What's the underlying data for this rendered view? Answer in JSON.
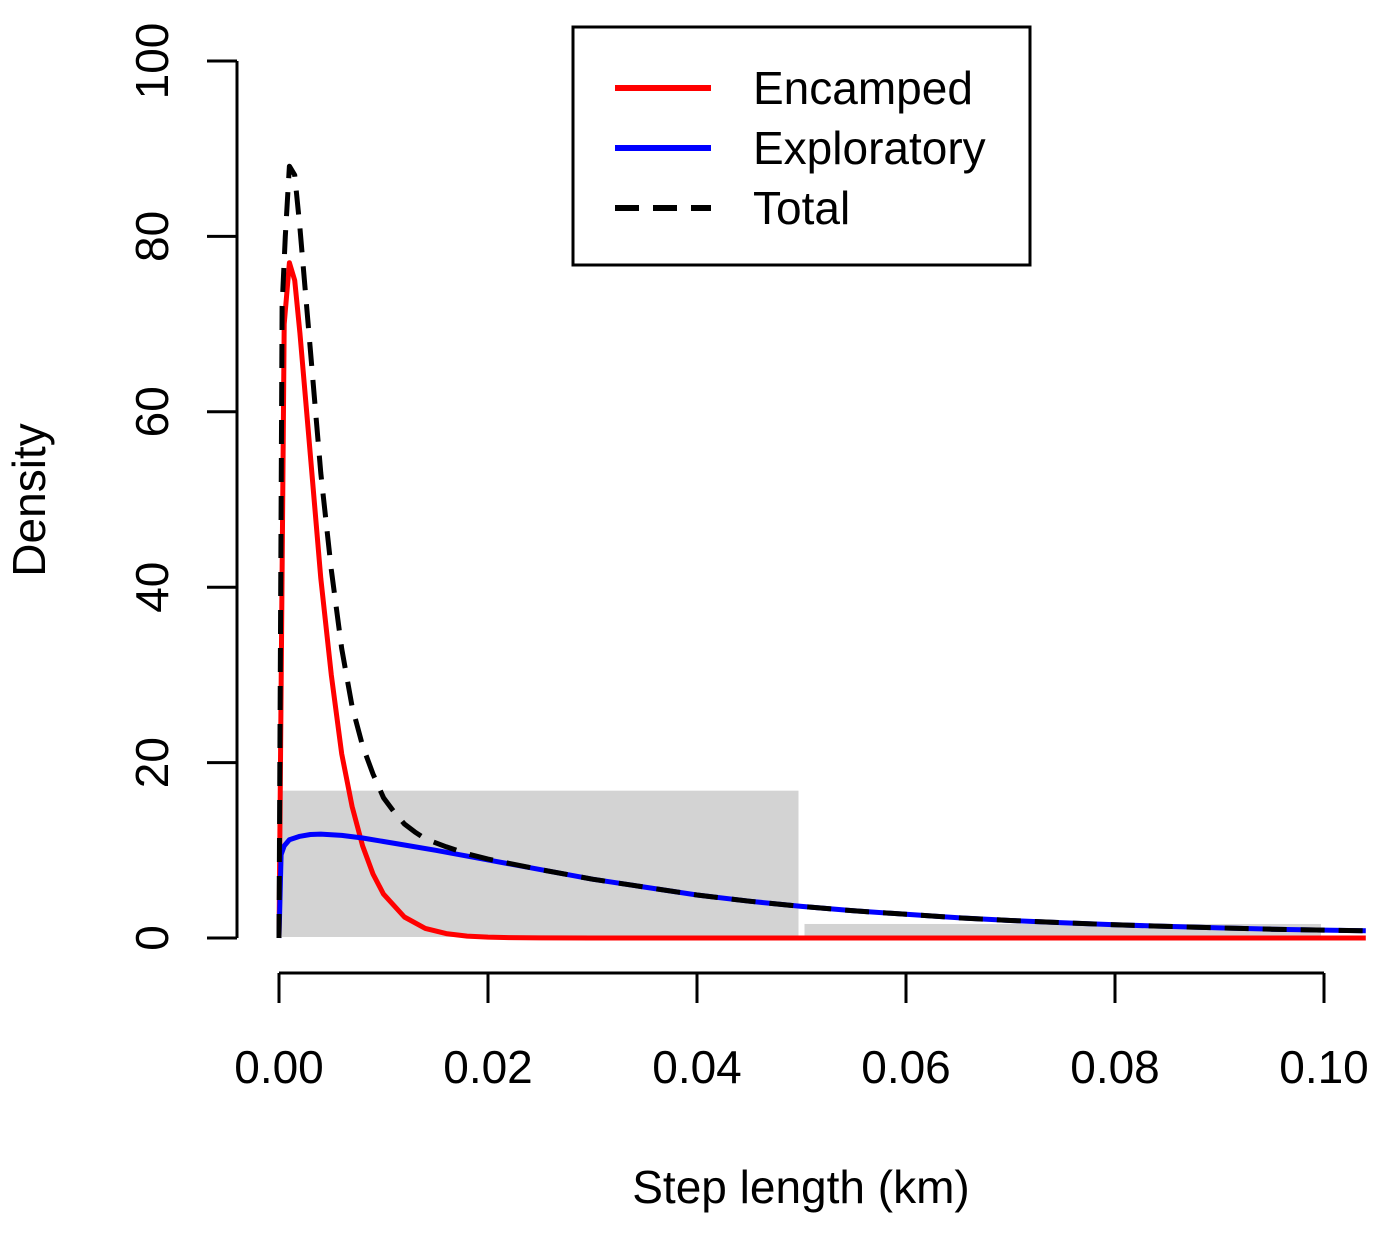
{
  "chart_data": {
    "type": "line",
    "title": "",
    "xlabel": "Step length (km)",
    "ylabel": "Density",
    "xlim": [
      0,
      0.104
    ],
    "ylim": [
      0,
      100
    ],
    "x_ticks": [
      0.0,
      0.02,
      0.04,
      0.06,
      0.08,
      0.1
    ],
    "x_tick_labels": [
      "0.00",
      "0.02",
      "0.04",
      "0.06",
      "0.08",
      "0.10"
    ],
    "y_ticks": [
      0,
      20,
      40,
      60,
      80,
      100
    ],
    "y_tick_labels": [
      "0",
      "20",
      "40",
      "60",
      "80",
      "100"
    ],
    "grid": false,
    "legend_position": "top-right",
    "histogram": {
      "color": "#d3d3d3",
      "bins": [
        {
          "x0": 0.0,
          "x1": 0.05,
          "density": 16.8
        },
        {
          "x0": 0.05,
          "x1": 0.1,
          "density": 1.6
        }
      ]
    },
    "series": [
      {
        "name": "Encamped",
        "color": "#ff0000",
        "dash": "solid",
        "x": [
          0,
          0.0005,
          0.001,
          0.0015,
          0.002,
          0.003,
          0.004,
          0.005,
          0.006,
          0.007,
          0.008,
          0.009,
          0.01,
          0.012,
          0.014,
          0.016,
          0.018,
          0.02,
          0.022,
          0.025,
          0.03,
          0.04,
          0.05,
          0.06,
          0.07,
          0.08,
          0.09,
          0.1,
          0.104
        ],
        "values": [
          0,
          70,
          77,
          75,
          69,
          55,
          41,
          30,
          21,
          15,
          10.5,
          7.3,
          5.0,
          2.4,
          1.1,
          0.5,
          0.22,
          0.1,
          0.04,
          0.01,
          0,
          0,
          0,
          0,
          0,
          0,
          0,
          0,
          0
        ]
      },
      {
        "name": "Exploratory",
        "color": "#0000ff",
        "dash": "solid",
        "x": [
          0,
          0.0002,
          0.0005,
          0.001,
          0.002,
          0.003,
          0.004,
          0.006,
          0.008,
          0.01,
          0.012,
          0.015,
          0.02,
          0.025,
          0.03,
          0.035,
          0.04,
          0.045,
          0.05,
          0.055,
          0.06,
          0.065,
          0.07,
          0.075,
          0.08,
          0.085,
          0.09,
          0.095,
          0.1,
          0.104
        ],
        "values": [
          0,
          9.5,
          10.5,
          11.2,
          11.6,
          11.8,
          11.85,
          11.7,
          11.4,
          11.0,
          10.6,
          10.0,
          8.9,
          7.8,
          6.7,
          5.8,
          4.9,
          4.2,
          3.6,
          3.1,
          2.7,
          2.3,
          2.0,
          1.75,
          1.5,
          1.32,
          1.15,
          1.0,
          0.9,
          0.82
        ]
      },
      {
        "name": "Total",
        "color": "#000000",
        "dash": "dashed",
        "x": [
          0,
          0.0003,
          0.0006,
          0.001,
          0.0015,
          0.002,
          0.003,
          0.004,
          0.005,
          0.006,
          0.007,
          0.008,
          0.009,
          0.01,
          0.011,
          0.012,
          0.013,
          0.014,
          0.016,
          0.018,
          0.02,
          0.025,
          0.03,
          0.035,
          0.04,
          0.045,
          0.05,
          0.055,
          0.06,
          0.065,
          0.07,
          0.075,
          0.08,
          0.085,
          0.09,
          0.095,
          0.1,
          0.104
        ],
        "values": [
          0,
          72,
          80,
          88,
          87,
          81,
          67,
          53,
          42,
          33,
          26.4,
          21.9,
          18.7,
          16.0,
          14.4,
          13.0,
          12.1,
          11.3,
          10.4,
          9.6,
          9.0,
          7.8,
          6.7,
          5.8,
          4.9,
          4.2,
          3.6,
          3.1,
          2.7,
          2.3,
          2.0,
          1.75,
          1.5,
          1.32,
          1.15,
          1.0,
          0.9,
          0.82
        ]
      }
    ]
  }
}
